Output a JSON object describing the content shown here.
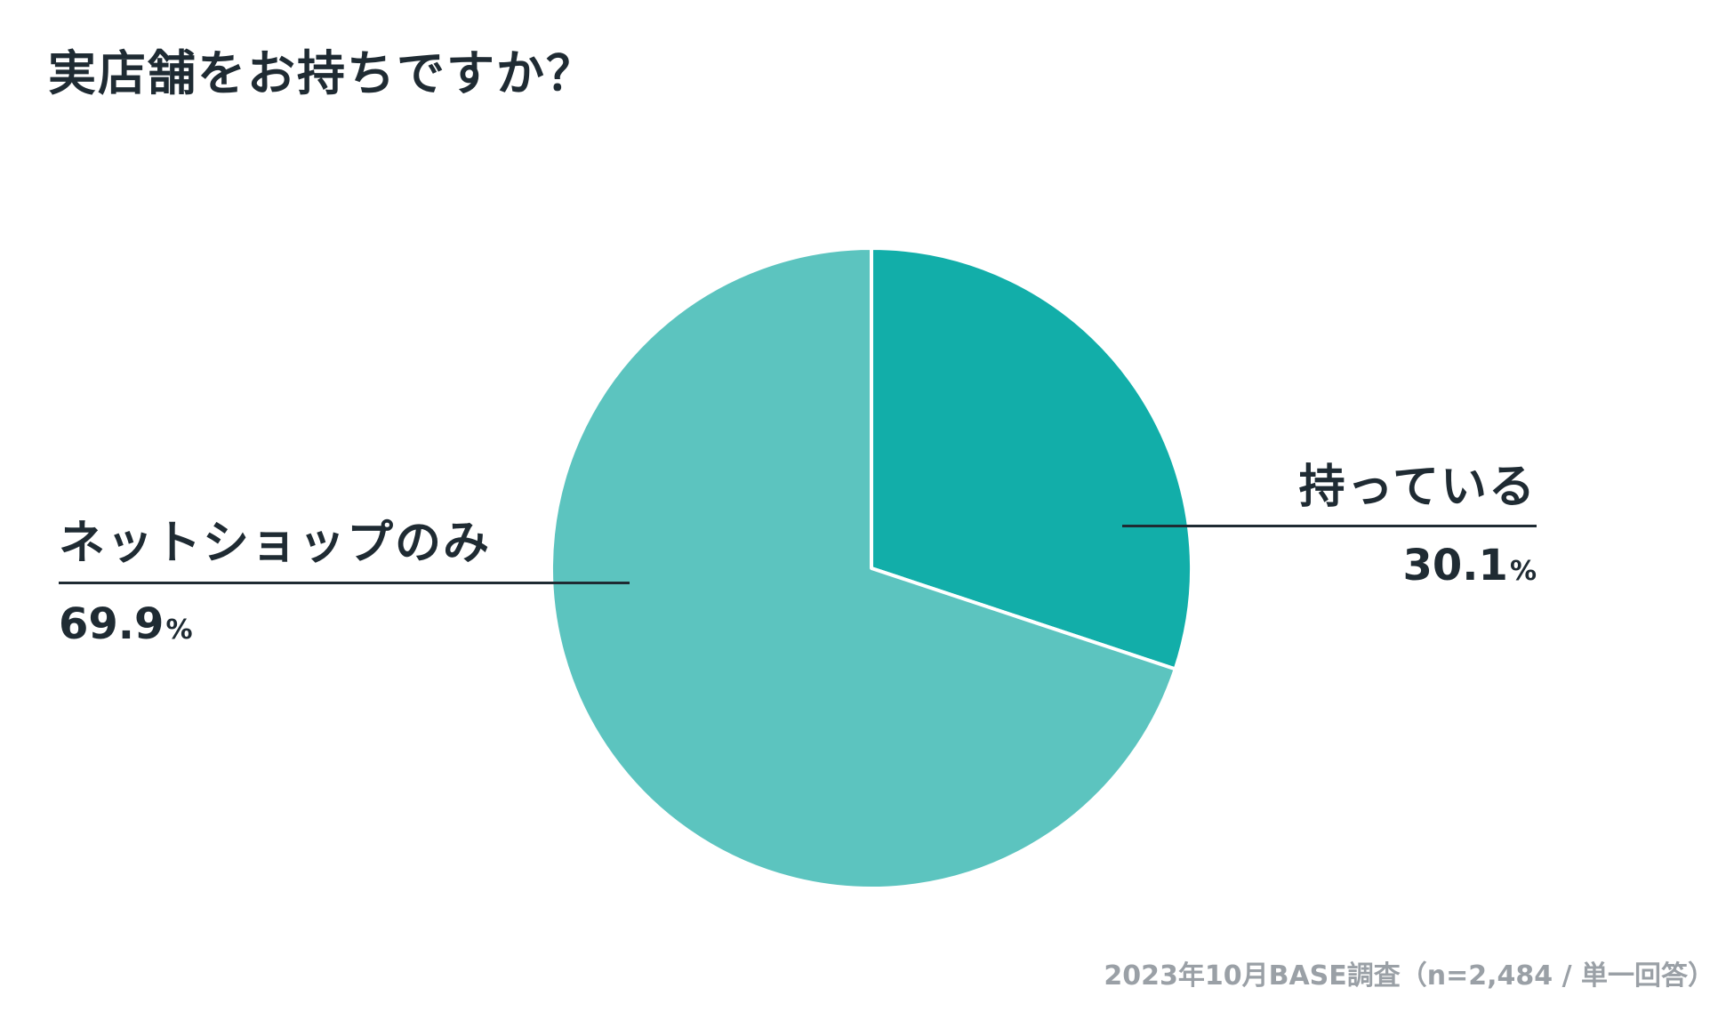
{
  "title": "実店舗をお持ちですか？",
  "footnote": "2023年10月BASE調査（n=2,484 / 単一回答）",
  "colors": {
    "text": "#1f2b33",
    "muted": "#9aa0a6",
    "slice_owned": "#12aea9",
    "slice_online": "#5cc4bf",
    "separator": "#ffffff"
  },
  "chart_data": {
    "type": "pie",
    "title": "実店舗をお持ちですか？",
    "unit": "%",
    "start": "12 o'clock, clockwise",
    "slices": [
      {
        "label": "持っている",
        "value": 30.1,
        "value_text": "30.1",
        "unit": "%",
        "color": "#12aea9"
      },
      {
        "label": "ネットショップのみ",
        "value": 69.9,
        "value_text": "69.9",
        "unit": "%",
        "color": "#5cc4bf"
      }
    ]
  }
}
